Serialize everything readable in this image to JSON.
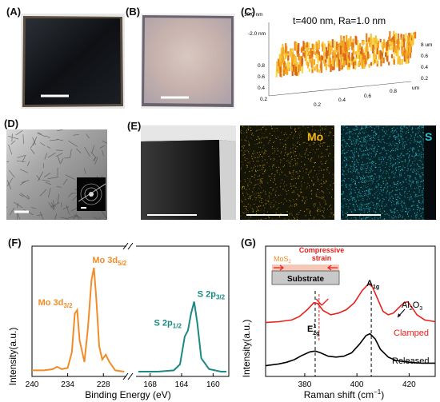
{
  "panel_labels": [
    "(A)",
    "(B)",
    "(C)",
    "(D)",
    "(E)",
    "(F)",
    "(G)"
  ],
  "panel_c": {
    "title": "t=400 nm, Ra=1.0 nm",
    "z_ticks": [
      "10.0 nm",
      "-2.0 nm"
    ],
    "y_ticks": [
      "0.8",
      "0.6",
      "0.4",
      "0.2"
    ],
    "x_ticks": [
      "0.2",
      "0.4",
      "0.6",
      "0.8"
    ],
    "y_end": "um",
    "x_end": "um",
    "right_ticks": [
      "8 um",
      "0.6",
      "0.4",
      "0.2"
    ]
  },
  "panel_e": {
    "map_mo_label": "Mo",
    "map_s_label": "S",
    "mo_color": "#f2b705",
    "s_color": "#2ec4d6"
  },
  "chart_data": [
    {
      "panel": "F",
      "type": "line",
      "xlabel": "Binding Energy (eV)",
      "ylabel": "Intensity(a.u.)",
      "mo_color": "#f28c28",
      "s_color": "#1a8a82",
      "segments": [
        {
          "name": "Mo 3d",
          "xlim": [
            240,
            224
          ],
          "ticks": [
            240,
            234,
            228
          ],
          "points": [
            [
              240,
              0.05
            ],
            [
              238,
              0.05
            ],
            [
              236.5,
              0.06
            ],
            [
              235.8,
              0.08
            ],
            [
              235,
              0.06
            ],
            [
              234,
              0.07
            ],
            [
              233.3,
              0.2
            ],
            [
              232.8,
              0.52
            ],
            [
              232.4,
              0.55
            ],
            [
              232,
              0.3
            ],
            [
              231.2,
              0.12
            ],
            [
              230.6,
              0.4
            ],
            [
              230,
              0.8
            ],
            [
              229.6,
              0.9
            ],
            [
              229.2,
              0.65
            ],
            [
              228.7,
              0.25
            ],
            [
              228.2,
              0.14
            ],
            [
              227.6,
              0.18
            ],
            [
              227,
              0.12
            ],
            [
              226,
              0.05
            ],
            [
              224.5,
              0.04
            ]
          ],
          "peaks": [
            {
              "text": "Mo 3d",
              "sub": "3/2",
              "x": 232.4,
              "y": 0.55
            },
            {
              "text": "Mo 3d",
              "sub": "5/2",
              "x": 229.6,
              "y": 0.9
            }
          ]
        },
        {
          "name": "S 2p",
          "xlim": [
            170,
            158
          ],
          "ticks": [
            168,
            164,
            160
          ],
          "points": [
            [
              169.5,
              0.04
            ],
            [
              167,
              0.04
            ],
            [
              165,
              0.05
            ],
            [
              164.2,
              0.1
            ],
            [
              163.6,
              0.33
            ],
            [
              163.2,
              0.38
            ],
            [
              162.8,
              0.52
            ],
            [
              162.4,
              0.62
            ],
            [
              162,
              0.44
            ],
            [
              161.5,
              0.15
            ],
            [
              160.5,
              0.06
            ],
            [
              159,
              0.04
            ],
            [
              158.3,
              0.04
            ]
          ],
          "peaks": [
            {
              "text": "S 2p",
              "sub": "1/2",
              "x": 163.4,
              "y": 0.38
            },
            {
              "text": "S 2p",
              "sub": "3/2",
              "x": 162.4,
              "y": 0.62
            }
          ]
        }
      ]
    },
    {
      "panel": "G",
      "type": "line",
      "xlabel": "Raman shift (cm",
      "xlabel_sup": "−1",
      "ylabel": "Intensity(a.u.)",
      "xlim": [
        365,
        430
      ],
      "xticks": [
        380,
        400,
        420
      ],
      "series": [
        {
          "name": "Clamped",
          "color": "#e8201c",
          "points": [
            [
              365,
              0.55
            ],
            [
              370,
              0.56
            ],
            [
              375,
              0.58
            ],
            [
              378,
              0.62
            ],
            [
              381,
              0.7
            ],
            [
              383.5,
              0.78
            ],
            [
              385,
              0.77
            ],
            [
              387,
              0.69
            ],
            [
              390,
              0.64
            ],
            [
              393,
              0.66
            ],
            [
              396,
              0.7
            ],
            [
              399,
              0.78
            ],
            [
              402,
              0.92
            ],
            [
              404.5,
              1.0
            ],
            [
              406,
              0.96
            ],
            [
              408,
              0.82
            ],
            [
              410,
              0.68
            ],
            [
              412,
              0.64
            ],
            [
              414,
              0.66
            ],
            [
              416,
              0.72
            ],
            [
              418,
              0.78
            ],
            [
              419.5,
              0.79
            ],
            [
              421,
              0.73
            ],
            [
              423,
              0.64
            ],
            [
              426,
              0.58
            ],
            [
              430,
              0.56
            ]
          ]
        },
        {
          "name": "Released",
          "color": "#000000",
          "points": [
            [
              365,
              0.05
            ],
            [
              370,
              0.07
            ],
            [
              373,
              0.09
            ],
            [
              376,
              0.12
            ],
            [
              379,
              0.17
            ],
            [
              382,
              0.21
            ],
            [
              384,
              0.22
            ],
            [
              386,
              0.2
            ],
            [
              389,
              0.16
            ],
            [
              392,
              0.15
            ],
            [
              395,
              0.16
            ],
            [
              398,
              0.2
            ],
            [
              401,
              0.3
            ],
            [
              403.5,
              0.4
            ],
            [
              405,
              0.42
            ],
            [
              407,
              0.36
            ],
            [
              409,
              0.24
            ],
            [
              412,
              0.15
            ],
            [
              415,
              0.11
            ],
            [
              420,
              0.09
            ],
            [
              425,
              0.08
            ],
            [
              430,
              0.08
            ]
          ]
        }
      ],
      "peak_labels": [
        {
          "text": "E",
          "sup": "1",
          "sub": "2g",
          "x": 384
        },
        {
          "text": "A",
          "sub": "1g",
          "x": 405.5
        }
      ],
      "dashed_lines": [
        384,
        405.5
      ],
      "red_dashed_line": 385.5,
      "annotations": {
        "al2o3": "Al",
        "al2o3_sub": "2",
        "al2o3_mid": "O",
        "al2o3_sub2": "3",
        "clamped": "Clamped",
        "released": "Released"
      },
      "inset": {
        "layer": "MoS",
        "layer_sub": "2",
        "strain_1": "Compressive",
        "strain_2": "strain",
        "substrate": "Substrate"
      }
    }
  ]
}
